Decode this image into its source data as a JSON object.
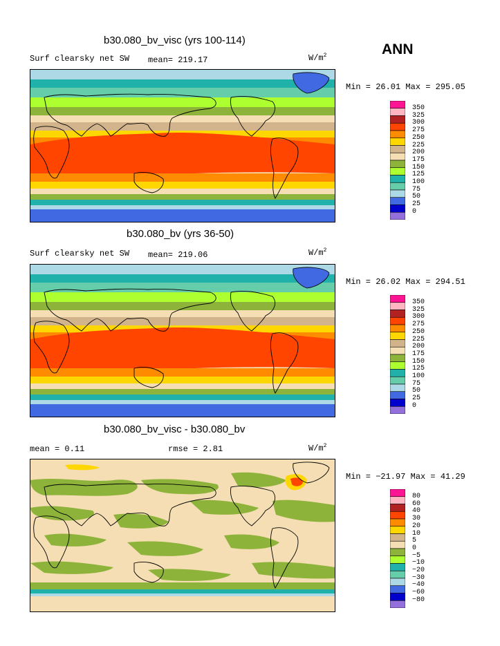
{
  "header": {
    "season": "ANN"
  },
  "panels": [
    {
      "title": "b30.080_bv_visc (yrs 100-114)",
      "variable": "Surf clearsky net SW",
      "stat1": "mean= 219.17",
      "stat2": "",
      "units_base": "W/m",
      "units_exp": "2",
      "minmax": "Min =   26.01 Max = 295.05",
      "colorbar_labels": [
        "350",
        "325",
        "300",
        "275",
        "250",
        "225",
        "200",
        "175",
        "150",
        "125",
        "100",
        "75",
        "50",
        "25",
        "0"
      ]
    },
    {
      "title": "b30.080_bv (yrs 36-50)",
      "variable": "Surf clearsky net SW",
      "stat1": "mean= 219.06",
      "stat2": "",
      "units_base": "W/m",
      "units_exp": "2",
      "minmax": "Min =   26.02 Max = 294.51",
      "colorbar_labels": [
        "350",
        "325",
        "300",
        "275",
        "250",
        "225",
        "200",
        "175",
        "150",
        "125",
        "100",
        "75",
        "50",
        "25",
        "0"
      ]
    },
    {
      "title": "b30.080_bv_visc - b30.080_bv",
      "variable": "",
      "stat1": "mean =    0.11",
      "stat2": "rmse =    2.81",
      "units_base": "W/m",
      "units_exp": "2",
      "minmax": "Min = −21.97 Max =  41.29",
      "colorbar_labels": [
        "80",
        "60",
        "40",
        "30",
        "20",
        "10",
        "5",
        "0",
        "−5",
        "−10",
        "−20",
        "−30",
        "−40",
        "−60",
        "−80"
      ]
    }
  ],
  "colorbar_colors": [
    "#ff1493",
    "#ffb6c1",
    "#b22222",
    "#ff4500",
    "#ff8c00",
    "#ffd700",
    "#d2b48c",
    "#f5deb3",
    "#8db33a",
    "#adff2f",
    "#20b2aa",
    "#66cdaa",
    "#add8e6",
    "#4169e1",
    "#0000cd",
    "#9370db"
  ],
  "chart_data": [
    {
      "type": "heatmap",
      "title": "b30.080_bv_visc (yrs 100-114)",
      "variable": "Surf clearsky net SW",
      "units": "W/m2",
      "mean": 219.17,
      "min": 26.01,
      "max": 295.05,
      "levels": [
        0,
        25,
        50,
        75,
        100,
        125,
        150,
        175,
        200,
        225,
        250,
        275,
        300,
        325,
        350
      ]
    },
    {
      "type": "heatmap",
      "title": "b30.080_bv (yrs 36-50)",
      "variable": "Surf clearsky net SW",
      "units": "W/m2",
      "mean": 219.06,
      "min": 26.02,
      "max": 294.51,
      "levels": [
        0,
        25,
        50,
        75,
        100,
        125,
        150,
        175,
        200,
        225,
        250,
        275,
        300,
        325,
        350
      ]
    },
    {
      "type": "heatmap",
      "title": "b30.080_bv_visc - b30.080_bv",
      "units": "W/m2",
      "mean": 0.11,
      "rmse": 2.81,
      "min": -21.97,
      "max": 41.29,
      "levels": [
        -80,
        -60,
        -40,
        -30,
        -20,
        -10,
        -5,
        0,
        5,
        10,
        20,
        30,
        40,
        60,
        80
      ]
    }
  ]
}
